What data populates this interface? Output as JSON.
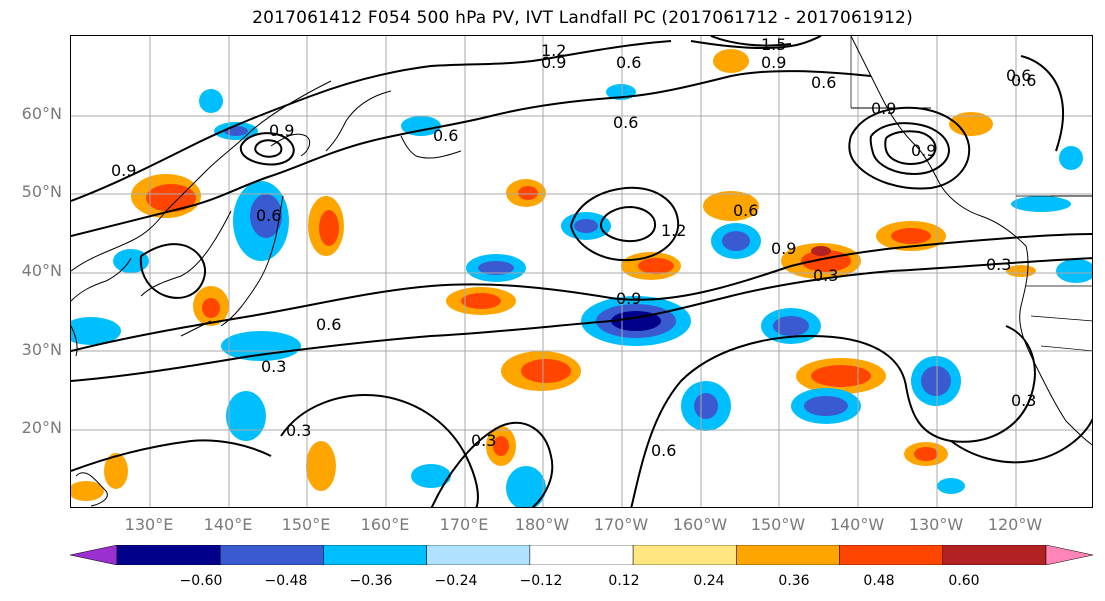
{
  "title": "2017061412 F054 500 hPa PV, IVT Landfall PC (2017061712 - 2017061912)",
  "lat_labels": [
    "60°N",
    "50°N",
    "40°N",
    "30°N",
    "20°N"
  ],
  "lon_labels": [
    "130°E",
    "140°E",
    "150°E",
    "160°E",
    "170°E",
    "180°W",
    "170°W",
    "160°W",
    "150°W",
    "140°W",
    "130°W",
    "120°W"
  ],
  "colorbar": {
    "colors": [
      "#9b30d0",
      "#00008b",
      "#3a5bd0",
      "#00bfff",
      "#b0e2ff",
      "#ffffff",
      "#ffe680",
      "#ffa500",
      "#ff4500",
      "#b22222",
      "#ff85b8"
    ],
    "tick_labels": [
      "−0.60",
      "−0.48",
      "−0.36",
      "−0.24",
      "−0.12",
      "0.12",
      "0.24",
      "0.36",
      "0.48",
      "0.60"
    ]
  },
  "contour_labels": [
    "1.2",
    "0.9",
    "0.6",
    "1.5",
    "0.9",
    "0.6",
    "0.6",
    "0.9",
    "0.6",
    "0.9",
    "0.6",
    "0.6",
    "0.9",
    "1.2",
    "0.6",
    "0.9",
    "0.3",
    "0.3",
    "0.9",
    "0.6",
    "0.3",
    "0.3",
    "0.3",
    "0.6",
    "0.3",
    "0.6",
    "0.9"
  ]
}
